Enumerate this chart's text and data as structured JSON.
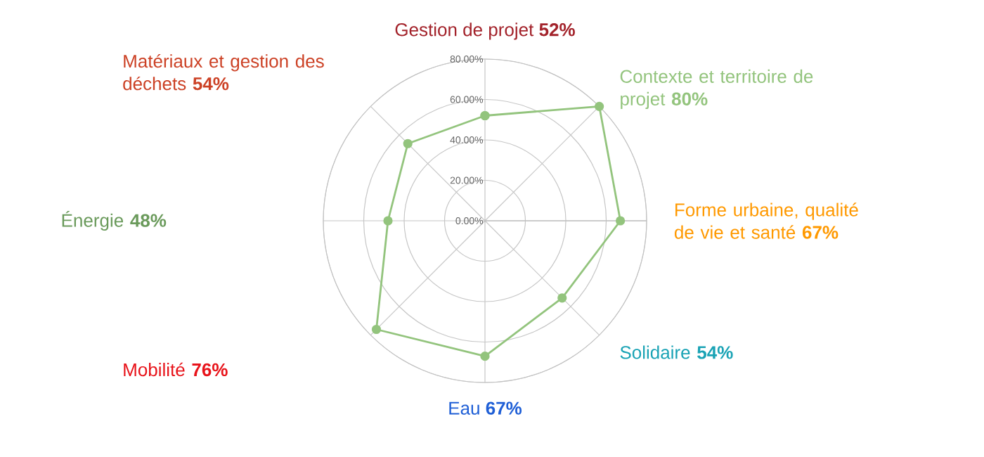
{
  "chart_data": {
    "type": "radar",
    "categories": [
      "Gestion de projet **52%**",
      "Contexte et territoire de projet **80%**",
      "Forme urbaine, qualité de vie et santé **67%**",
      "Solidaire **54%**",
      "Eau **67%**",
      "Mobilité **76%**",
      "Énergie **48%**",
      "Matériaux et gestion des déchets **54%**"
    ],
    "series": [
      {
        "color": "#93c47d",
        "values": [
          52,
          80,
          67,
          54,
          67,
          76,
          48,
          54
        ]
      }
    ],
    "ylim": [
      0,
      80
    ],
    "yticks": [
      {
        "value": 0,
        "label": "0.00%"
      },
      {
        "value": 20,
        "label": "20.00%"
      },
      {
        "value": 40,
        "label": "40.00%"
      },
      {
        "value": 60,
        "label": "60.00%"
      },
      {
        "value": 80,
        "label": "80.00%"
      }
    ],
    "grid": true,
    "marker": "circle"
  }
}
